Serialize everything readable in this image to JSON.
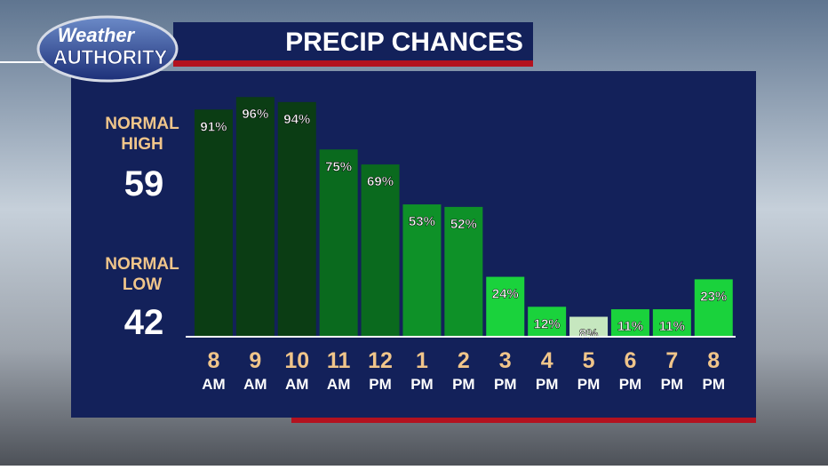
{
  "logo": {
    "line1": "Weather",
    "line2": "AUTHORITY"
  },
  "normals": {
    "high_label": "NORMAL HIGH",
    "high": 59,
    "low_label": "NORMAL LOW",
    "low": 42
  },
  "chart_data": {
    "type": "bar",
    "title": "PRECIP CHANCES",
    "categories": [
      [
        "8",
        "AM"
      ],
      [
        "9",
        "AM"
      ],
      [
        "10",
        "AM"
      ],
      [
        "11",
        "AM"
      ],
      [
        "12",
        "PM"
      ],
      [
        "1",
        "PM"
      ],
      [
        "2",
        "PM"
      ],
      [
        "3",
        "PM"
      ],
      [
        "4",
        "PM"
      ],
      [
        "5",
        "PM"
      ],
      [
        "6",
        "PM"
      ],
      [
        "7",
        "PM"
      ],
      [
        "8",
        "PM"
      ]
    ],
    "values": [
      91,
      96,
      94,
      75,
      69,
      53,
      52,
      24,
      12,
      8,
      11,
      11,
      23
    ],
    "value_labels": [
      "91%",
      "96%",
      "94%",
      "75%",
      "69%",
      "53%",
      "52%",
      "24%",
      "12%",
      "8%",
      "11%",
      "11%",
      "23%"
    ],
    "colors": [
      "#0b3d14",
      "#0b3d14",
      "#0b3d14",
      "#0a6a1e",
      "#0a6a1e",
      "#0e9128",
      "#0e9128",
      "#1ad23c",
      "#1ad23c",
      "#c6e7bf",
      "#1ad23c",
      "#1ad23c",
      "#1ad23c"
    ],
    "ylim": [
      0,
      100
    ]
  }
}
